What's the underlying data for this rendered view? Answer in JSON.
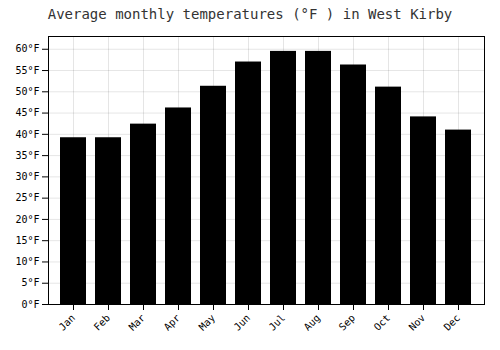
{
  "chart_data": {
    "type": "bar",
    "title": "Average monthly temperatures (°F ) in West Kirby",
    "categories": [
      "Jan",
      "Feb",
      "Mar",
      "Apr",
      "May",
      "Jun",
      "Jul",
      "Aug",
      "Sep",
      "Oct",
      "Nov",
      "Dec"
    ],
    "values": [
      39.2,
      39.2,
      42.4,
      46.2,
      51.3,
      57.0,
      59.5,
      59.5,
      56.3,
      51.1,
      44.1,
      41.0
    ],
    "ylim": [
      0,
      63
    ],
    "yticks": [
      {
        "value": 0,
        "label": "0°F"
      },
      {
        "value": 5,
        "label": "5°F"
      },
      {
        "value": 10,
        "label": "10°F"
      },
      {
        "value": 15,
        "label": "15°F"
      },
      {
        "value": 20,
        "label": "20°F"
      },
      {
        "value": 25,
        "label": "25°F"
      },
      {
        "value": 30,
        "label": "30°F"
      },
      {
        "value": 35,
        "label": "35°F"
      },
      {
        "value": 40,
        "label": "40°F"
      },
      {
        "value": 45,
        "label": "45°F"
      },
      {
        "value": 50,
        "label": "50°F"
      },
      {
        "value": 55,
        "label": "55°F"
      },
      {
        "value": 60,
        "label": "60°F"
      }
    ],
    "grid": true
  }
}
